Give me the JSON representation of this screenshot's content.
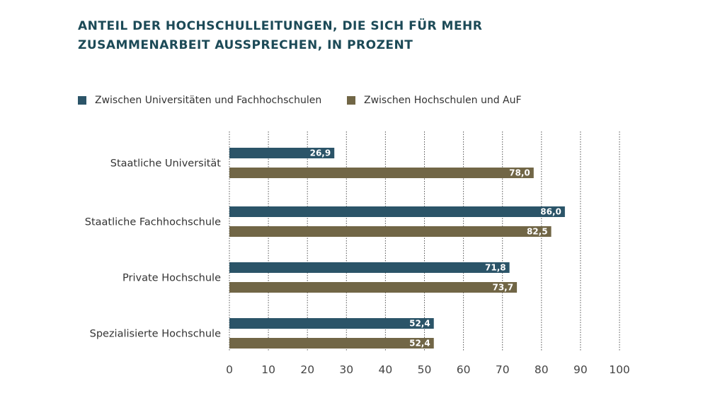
{
  "chart_data": {
    "type": "bar",
    "orientation": "horizontal",
    "title": "ANTEIL DER HOCHSCHULLEITUNGEN, DIE SICH FÜR MEHR ZUSAMMENARBEIT AUSSPRECHEN, IN PROZENT",
    "categories": [
      "Staatliche Universität",
      "Staatliche Fachhochschule",
      "Private Hochschule",
      "Spezialisierte Hochschule"
    ],
    "series": [
      {
        "name": "Zwischen Universitäten und Fachhochschulen",
        "color": "#2b5468",
        "values": [
          26.9,
          86.0,
          71.8,
          52.4
        ],
        "labels": [
          "26,9",
          "86,0",
          "71,8",
          "52,4"
        ]
      },
      {
        "name": "Zwischen Hochschulen und AuF",
        "color": "#716646",
        "values": [
          78.0,
          82.5,
          73.7,
          52.4
        ],
        "labels": [
          "78,0",
          "82,5",
          "73,7",
          "52,4"
        ]
      }
    ],
    "xlabel": "",
    "ylabel": "",
    "xlim": [
      0,
      100
    ],
    "xticks": [
      0,
      10,
      20,
      30,
      40,
      50,
      60,
      70,
      80,
      90,
      100
    ],
    "grid": true,
    "legend_position": "top-left"
  }
}
